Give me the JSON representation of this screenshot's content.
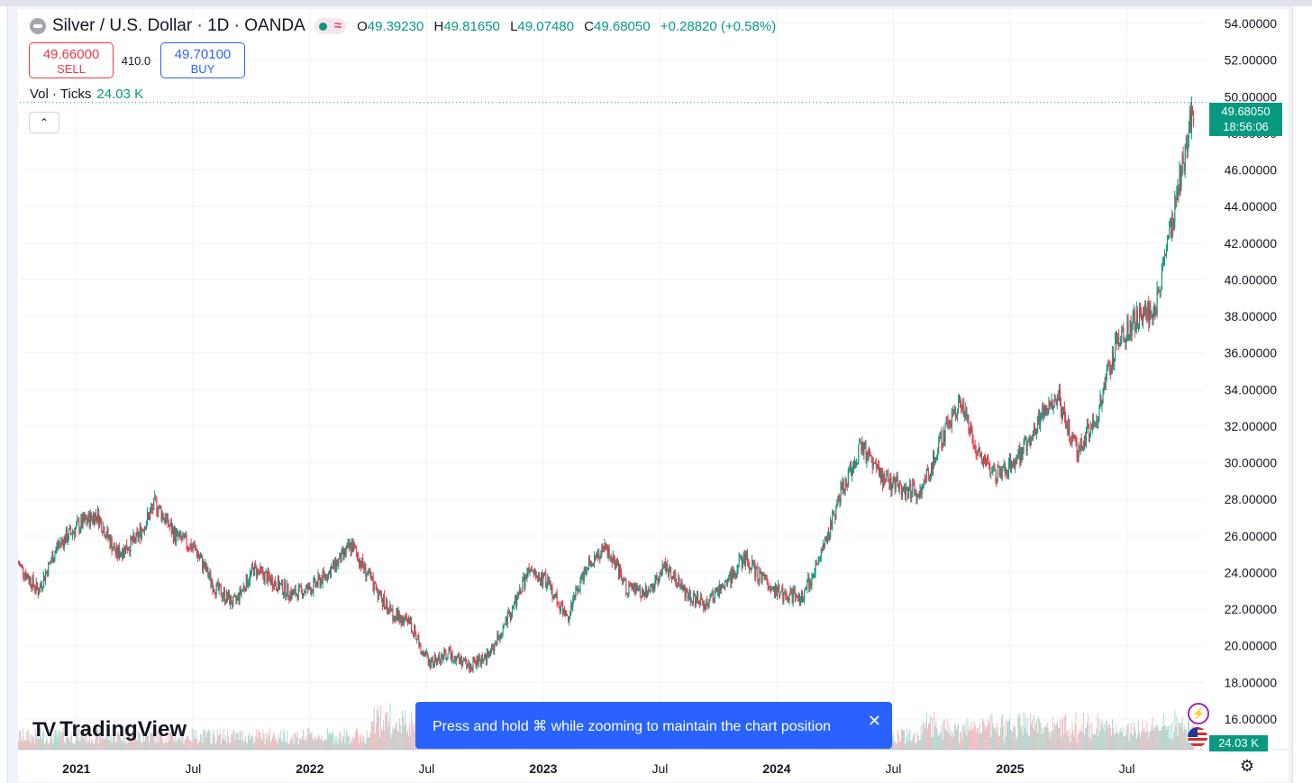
{
  "header": {
    "title": "Silver / U.S. Dollar · 1D · OANDA",
    "ohlc": {
      "o_label": "O",
      "o": "49.39230",
      "h_label": "H",
      "h": "49.81650",
      "l_label": "L",
      "l": "49.07480",
      "c_label": "C",
      "c": "49.68050",
      "change": "+0.28820 (+0.58%)"
    },
    "approx_glyph": "≈"
  },
  "trade": {
    "sell_price": "49.66000",
    "sell_label": "SELL",
    "spread": "410.0",
    "buy_price": "49.70100",
    "buy_label": "BUY"
  },
  "volume_indicator": {
    "label": "Vol · Ticks",
    "value": "24.03 K"
  },
  "price_axis": {
    "ticks": [
      "54.00000",
      "52.00000",
      "50.00000",
      "48.00000",
      "46.00000",
      "44.00000",
      "42.00000",
      "40.00000",
      "38.00000",
      "36.00000",
      "34.00000",
      "32.00000",
      "30.00000",
      "28.00000",
      "26.00000",
      "24.00000",
      "22.00000",
      "20.00000",
      "18.00000",
      "16.00000"
    ],
    "last_price": "49.68050",
    "countdown": "18:56:06",
    "volume_badge": "24.03 K"
  },
  "toast": {
    "message": "Press and hold ⌘ while zooming to maintain the chart position",
    "close_glyph": "✕"
  },
  "logo": {
    "mark": "TV",
    "text": "TradingView"
  },
  "colors": {
    "up": "#089981",
    "down": "#f23645",
    "accent": "#2962ff",
    "grid": "#f0f3fa"
  },
  "chart_data": {
    "type": "candlestick",
    "title": "Silver / U.S. Dollar · 1D · OANDA",
    "x_ticks": [
      "2021",
      "Jul",
      "2022",
      "Jul",
      "2023",
      "Jul",
      "2024",
      "Jul",
      "2025",
      "Jul"
    ],
    "ylim": [
      15,
      55
    ],
    "grid": true,
    "series": [
      {
        "name": "Silver / U.S. Dollar",
        "kind": "close-path",
        "date": [
          "2020-10",
          "2020-11",
          "2020-12",
          "2021-01",
          "2021-02",
          "2021-03",
          "2021-04",
          "2021-05",
          "2021-06",
          "2021-07",
          "2021-08",
          "2021-09",
          "2021-10",
          "2021-11",
          "2021-12",
          "2022-01",
          "2022-02",
          "2022-03",
          "2022-04",
          "2022-05",
          "2022-06",
          "2022-07",
          "2022-08",
          "2022-09",
          "2022-10",
          "2022-11",
          "2022-12",
          "2023-01",
          "2023-02",
          "2023-03",
          "2023-04",
          "2023-05",
          "2023-06",
          "2023-07",
          "2023-08",
          "2023-09",
          "2023-10",
          "2023-11",
          "2023-12",
          "2024-01",
          "2024-02",
          "2024-03",
          "2024-04",
          "2024-05",
          "2024-06",
          "2024-07",
          "2024-08",
          "2024-09",
          "2024-10",
          "2024-11",
          "2024-12",
          "2025-01",
          "2025-02",
          "2025-03",
          "2025-04",
          "2025-05",
          "2025-06",
          "2025-07",
          "2025-08",
          "2025-09",
          "2025-10"
        ],
        "close": [
          24.5,
          23.0,
          25.5,
          26.5,
          27.2,
          25.0,
          25.8,
          27.8,
          26.0,
          25.3,
          23.2,
          22.3,
          24.2,
          23.5,
          22.8,
          23.2,
          24.2,
          25.5,
          23.5,
          21.8,
          21.2,
          19.0,
          19.6,
          18.9,
          19.5,
          21.5,
          24.0,
          23.5,
          21.5,
          24.5,
          25.3,
          23.2,
          22.8,
          24.4,
          23.0,
          22.2,
          23.3,
          24.8,
          23.6,
          22.8,
          22.7,
          25.0,
          28.5,
          31.0,
          29.2,
          28.6,
          28.3,
          31.0,
          33.5,
          30.5,
          29.3,
          30.2,
          32.2,
          33.8,
          30.5,
          32.5,
          36.5,
          37.8,
          38.4,
          44.0,
          49.68
        ]
      }
    ],
    "volume_axis_label": "Vol · Ticks",
    "last_volume": "24.03 K"
  }
}
